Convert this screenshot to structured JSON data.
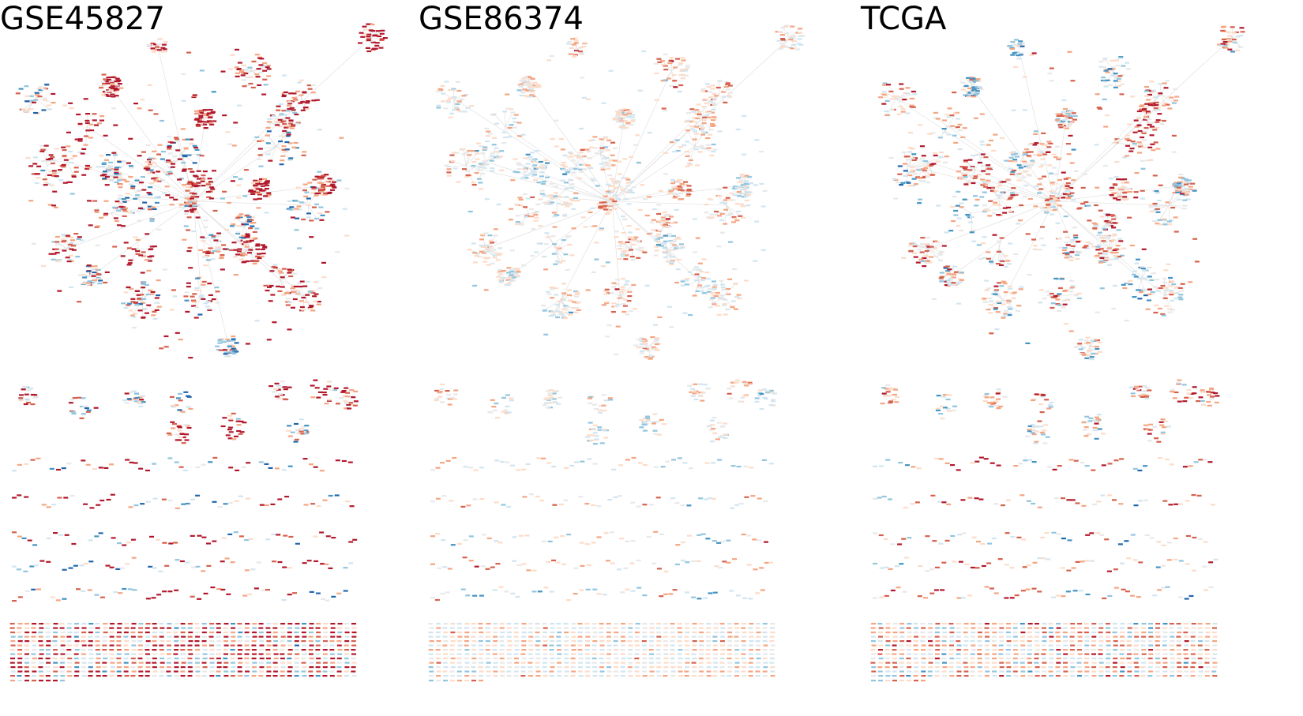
{
  "figure": {
    "panels": [
      {
        "title": "GSE45827",
        "color_bias": 0.45,
        "color_intensity": 1.0
      },
      {
        "title": "GSE86374",
        "color_bias": 0.15,
        "color_intensity": 0.45
      },
      {
        "title": "TCGA",
        "color_bias": 0.25,
        "color_intensity": 0.7
      }
    ],
    "colors": {
      "strong_red": "#b2182b",
      "red": "#d6604d",
      "light_red": "#f4a582",
      "pale_red": "#fddbc7",
      "neutral": "#e8e8e8",
      "pale_blue": "#d1e5f0",
      "light_blue": "#92c5de",
      "blue": "#4393c3",
      "strong_blue": "#2166ac",
      "edge": "#dddddd"
    }
  }
}
